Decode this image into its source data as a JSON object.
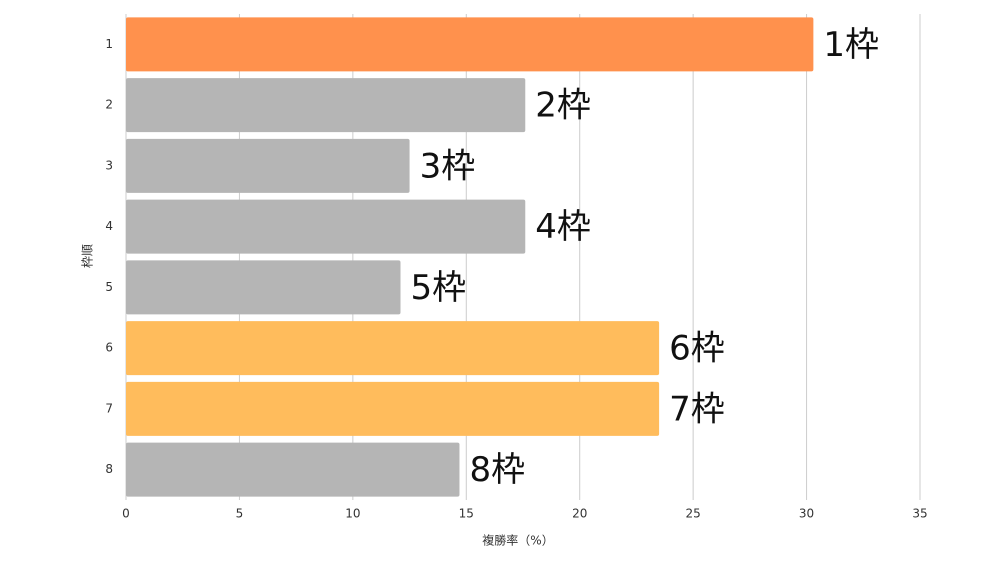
{
  "chart_data": {
    "type": "bar",
    "orientation": "horizontal",
    "categories": [
      "1",
      "2",
      "3",
      "4",
      "5",
      "6",
      "7",
      "8"
    ],
    "values": [
      30.3,
      17.6,
      12.5,
      17.6,
      12.1,
      23.5,
      23.5,
      14.7
    ],
    "bar_labels": [
      "1枠",
      "2枠",
      "3枠",
      "4枠",
      "5枠",
      "6枠",
      "7枠",
      "8枠"
    ],
    "colors": [
      "#ff914d",
      "#b5b5b5",
      "#b5b5b5",
      "#b5b5b5",
      "#b5b5b5",
      "#ffbc5c",
      "#ffbc5c",
      "#b5b5b5"
    ],
    "xlabel": "複勝率（%）",
    "ylabel": "枠順",
    "xlim": [
      0,
      35
    ],
    "xticks": [
      0,
      5,
      10,
      15,
      20,
      25,
      30,
      35
    ],
    "grid": true
  }
}
